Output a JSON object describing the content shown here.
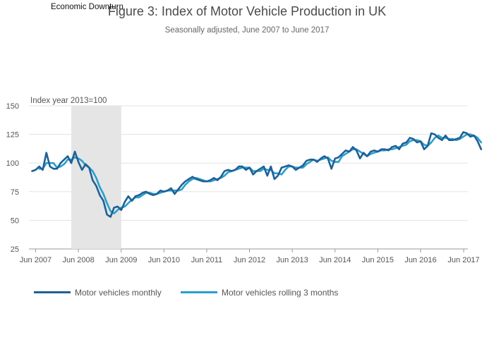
{
  "chart_data": {
    "type": "line",
    "title": "Figure 3: Index of Motor Vehicle Production in UK",
    "subtitle": "Seasonally adjusted, June 2007 to June 2017",
    "annotation": "Economic Downturn",
    "ylabel": "Index year 2013=100",
    "ylim": [
      25,
      150
    ],
    "yticks": [
      "25",
      "50",
      "75",
      "100",
      "125",
      "150"
    ],
    "xticks": [
      "Jun 2007",
      "Jun 2008",
      "Jun 2009",
      "Jun 2010",
      "Jun 2011",
      "Jun 2012",
      "Jun 2013",
      "Jun 2014",
      "Jun 2015",
      "Jun 2016",
      "Jun 2017"
    ],
    "x_start": "2007-05",
    "shaded_region": {
      "from": "2008-04",
      "to": "2009-06"
    },
    "grid": "horizontal",
    "legend_position": "bottom",
    "colors": {
      "monthly": "#206095",
      "rolling": "#27a0cc",
      "shade": "#e5e5e5"
    },
    "series": [
      {
        "name": "Motor vehicles monthly",
        "values": [
          93,
          94,
          97,
          94,
          109,
          97,
          95,
          95,
          100,
          103,
          106,
          100,
          110,
          101,
          94,
          99,
          96,
          85,
          80,
          72,
          67,
          55,
          53,
          61,
          62,
          59,
          66,
          71,
          67,
          71,
          72,
          74,
          75,
          73,
          72,
          73,
          76,
          75,
          76,
          78,
          73,
          77,
          81,
          84,
          86,
          88,
          86,
          85,
          84,
          84,
          85,
          87,
          85,
          88,
          93,
          94,
          93,
          94,
          97,
          97,
          94,
          96,
          90,
          93,
          95,
          97,
          89,
          97,
          86,
          89,
          96,
          97,
          98,
          97,
          94,
          96,
          98,
          102,
          103,
          103,
          101,
          104,
          106,
          104,
          95,
          104,
          105,
          108,
          111,
          110,
          114,
          111,
          104,
          109,
          106,
          110,
          111,
          110,
          112,
          112,
          111,
          114,
          115,
          112,
          117,
          118,
          122,
          121,
          118,
          119,
          112,
          115,
          126,
          125,
          122,
          120,
          124,
          120,
          120,
          121,
          122,
          127,
          126,
          123,
          124,
          119,
          112
        ],
        "color": "#206095"
      },
      {
        "name": "Motor vehicles rolling 3 months",
        "values": [
          null,
          null,
          95,
          95,
          100,
          100,
          100,
          96,
          97,
          99,
          103,
          103,
          105,
          104,
          102,
          98,
          96,
          93,
          87,
          79,
          73,
          65,
          58,
          56,
          59,
          61,
          62,
          65,
          68,
          70,
          70,
          72,
          74,
          74,
          73,
          73,
          74,
          75,
          76,
          76,
          76,
          76,
          77,
          81,
          84,
          86,
          87,
          86,
          85,
          84,
          84,
          85,
          86,
          87,
          89,
          92,
          93,
          94,
          95,
          96,
          96,
          96,
          93,
          93,
          93,
          95,
          94,
          94,
          91,
          91,
          90,
          94,
          97,
          97,
          96,
          96,
          96,
          99,
          101,
          103,
          102,
          103,
          104,
          105,
          102,
          101,
          101,
          106,
          108,
          110,
          112,
          112,
          110,
          108,
          106,
          108,
          109,
          110,
          111,
          111,
          112,
          112,
          113,
          114,
          115,
          116,
          119,
          120,
          120,
          119,
          116,
          115,
          118,
          122,
          124,
          122,
          122,
          121,
          121,
          120,
          121,
          123,
          125,
          125,
          124,
          122,
          118
        ],
        "color": "#27a0cc"
      }
    ]
  }
}
